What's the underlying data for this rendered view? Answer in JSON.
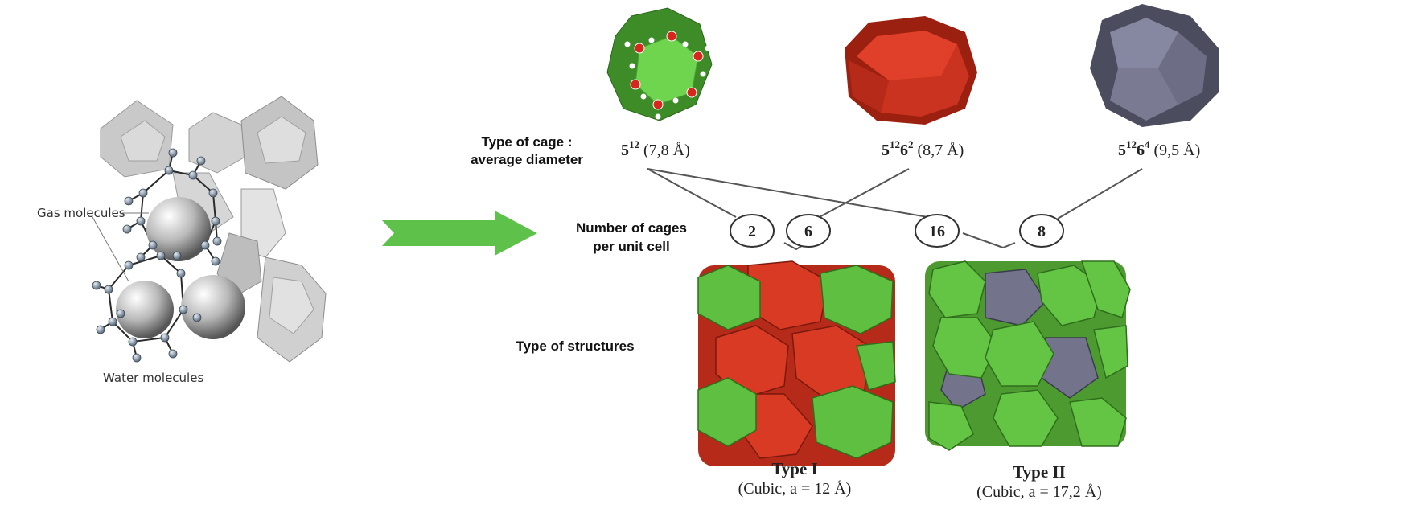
{
  "left_figure": {
    "gas_label": "Gas molecules",
    "water_label": "Water molecules"
  },
  "row_labels": {
    "cage_type_line1": "Type of cage :",
    "cage_type_line2": "average diameter",
    "cages_per_cell_line1": "Number of cages",
    "cages_per_cell_line2": "per unit cell",
    "structures": "Type of structures"
  },
  "cages": [
    {
      "base": "5",
      "sup": "12",
      "diameter": " (7,8 Å)",
      "color": "#3f8f2a",
      "face_color": "#6bd04c"
    },
    {
      "base": "5",
      "sup": "12",
      "base2": "6",
      "sup2": "2",
      "diameter": " (8,7 Å)",
      "color": "#b42a18",
      "face_color": "#d63a24"
    },
    {
      "base": "5",
      "sup": "12",
      "base2": "6",
      "sup2": "4",
      "diameter": " (9,5 Å)",
      "color": "#55566a",
      "face_color": "#7e7f96"
    }
  ],
  "counts": [
    "2",
    "6",
    "16",
    "8"
  ],
  "structures": [
    {
      "name": "Type I",
      "detail": "(Cubic, a = 12 Å)"
    },
    {
      "name": "Type II",
      "detail": "(Cubic, a = 17,2 Å)"
    }
  ],
  "colors": {
    "arrow": "#5ec24a",
    "green": "#5fbf40",
    "red": "#c9311d",
    "grey": "#73748b"
  }
}
